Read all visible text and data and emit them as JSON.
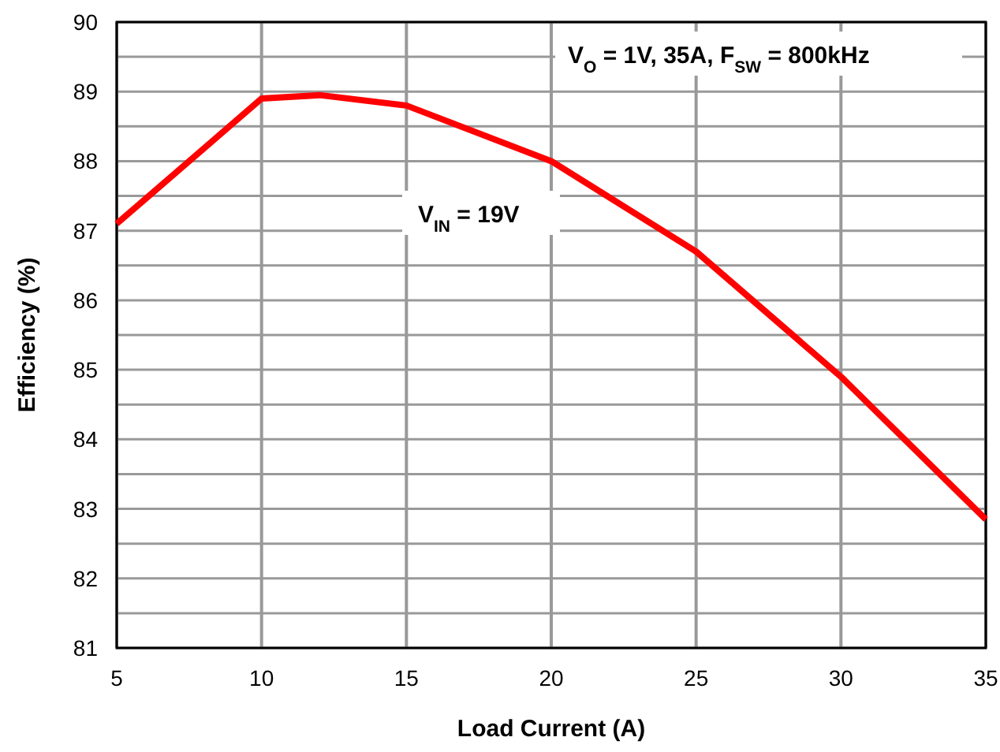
{
  "chart_data": {
    "type": "line",
    "xlabel": "Load Current (A)",
    "ylabel": "Efficiency (%)",
    "xlim": [
      5,
      35
    ],
    "xticks": [
      5,
      10,
      15,
      20,
      25,
      30,
      35
    ],
    "ylim": [
      81,
      90
    ],
    "yticks": [
      81,
      {
        "value": 81.5,
        "label": null
      },
      82,
      {
        "value": 82.5,
        "label": null
      },
      83,
      {
        "value": 83.5,
        "label": null
      },
      84,
      {
        "value": 84.5,
        "label": null
      },
      85,
      {
        "value": 85.5,
        "label": null
      },
      86,
      {
        "value": 86.5,
        "label": null
      },
      87,
      {
        "value": 87.5,
        "label": null
      },
      88,
      {
        "value": 88.5,
        "label": null
      },
      89,
      {
        "value": 89.5,
        "label": null
      },
      90
    ],
    "grid": true,
    "marker": "none",
    "line_style": "solid",
    "annotations": [
      "V$_{O}$ = 1V,  35A, F$_{SW}$ = 800kHz"
    ],
    "series": [
      {
        "name": "V$_{IN}$ = 19V",
        "color": "#ff0000",
        "x": [
          5,
          10,
          12,
          15,
          20,
          25,
          30,
          35
        ],
        "values": [
          87.1,
          88.9,
          88.95,
          88.8,
          88.0,
          86.7,
          84.9,
          82.85
        ]
      }
    ]
  }
}
